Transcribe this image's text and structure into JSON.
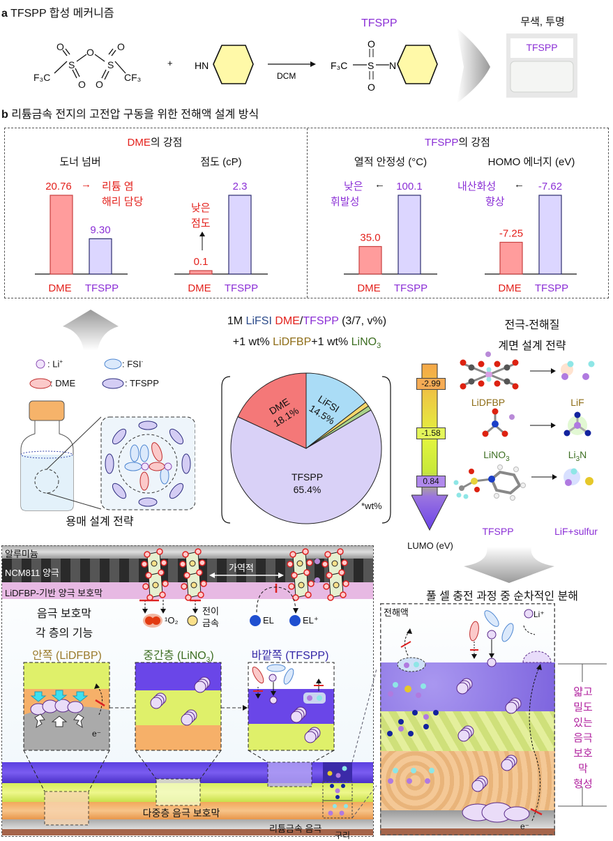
{
  "part_a": {
    "label": "a",
    "title": "TFSPP 합성 메커니즘",
    "plus": "+",
    "solvent": "DCM",
    "product_name": "TFSPP",
    "vial_caption": "무색, 투명",
    "vial_label": "TFSPP",
    "atoms": {
      "o": "O",
      "s": "S",
      "f3c": "F₃C",
      "cf3": "CF₃",
      "hn": "HN",
      "n": "N"
    }
  },
  "part_b": {
    "label": "b",
    "title": "리튬금속 전지의 고전압 구동을 위한 전해액 설계 방식",
    "dme_panel": {
      "name": "DME",
      "suffix": "의 강점"
    },
    "tfspp_panel": {
      "name": "TFSPP",
      "suffix": "의 강점"
    },
    "annotations": {
      "donor": [
        "리튬 염",
        "해리 담당"
      ],
      "viscosity": [
        "낮은",
        "점도"
      ],
      "thermal": [
        "낮은",
        "휘발성"
      ],
      "homo": [
        "내산화성",
        "향상"
      ]
    },
    "formula": {
      "line1": [
        "1M ",
        "LiFSI",
        " ",
        "DME",
        "/",
        "TFSPP",
        " (3/7, v%)"
      ],
      "line2": [
        "+1 wt% ",
        "LiDFBP",
        "+1 wt% ",
        "LiNO",
        "3"
      ]
    },
    "legend": {
      "li": ": Li",
      "li_sup": "+",
      "fsi": ": FSI",
      "fsi_sup": "-",
      "dme": ": DME",
      "tfspp": ": TFSPP"
    },
    "solvent_strategy": "용매 설계 전략",
    "interface": {
      "title": [
        "전극-전해질",
        "계면 설계 전략"
      ],
      "lumo_values": [
        "-2.99",
        "-1.58",
        "0.84"
      ],
      "lumo_label": "LUMO (eV)",
      "additives": [
        {
          "name": "LiDFBP",
          "product": "LiF"
        },
        {
          "name": "LiNO",
          "name_sub": "3",
          "product": "Li",
          "product_sub": "3",
          "product_tail": "N"
        },
        {
          "name": "TFSPP",
          "product": "LiF+sulfur"
        }
      ]
    },
    "anode_panel": {
      "layers": {
        "al": "알루미늄",
        "ncm": "NCM811 양극",
        "cei": "LiDFBP-기반 양극 보호막"
      },
      "reversible": "가역적",
      "singlet_o2": "¹O₂",
      "tm": [
        "전이",
        "금속"
      ],
      "el": "EL",
      "el_plus": "EL⁺",
      "function_title": [
        "음극 보호막",
        "각 층의 기능"
      ],
      "inner": "안쪽 (LiDFBP)",
      "middle": [
        "중간층 (LiNO",
        "3",
        ")"
      ],
      "outer": "바깥쪽 (TFSPP)",
      "electron": "e⁻",
      "multilayer": "다중층 음극 보호막",
      "li_anode": "리튬금속 음극",
      "copper": "구리"
    },
    "decomposition": {
      "title": "풀 셀 충전 과정 중 순차적인 분해",
      "electrolyte": "전해액",
      "li_plus": "Li⁺",
      "electron": "e⁻",
      "result": [
        "얇고",
        "밀도",
        "있는",
        "음극",
        "보호막",
        "형성"
      ]
    }
  },
  "colors": {
    "dme": "#e3201b",
    "tfspp": "#8b2fd6",
    "lifsi": "#2b4a8a",
    "lidfbp": "#8e6d17",
    "lino3": "#3d6e22",
    "dme_bar": "#ff9c9c",
    "tfspp_bar": "#dcd6ff",
    "pie_dme": "#f47878",
    "pie_lifsi": "#aadcf6",
    "pie_lidfbp": "#f5d66a",
    "pie_lino3": "#a9d28a",
    "pie_tfspp": "#d9d1f7"
  },
  "chart_data": [
    {
      "type": "bar",
      "title": "도너 넘버",
      "categories": [
        "DME",
        "TFSPP"
      ],
      "values": [
        20.76,
        9.3
      ],
      "labels": [
        "20.76",
        "9.30"
      ],
      "ylim": [
        0,
        20.76
      ]
    },
    {
      "type": "bar",
      "title": "점도 (cP)",
      "categories": [
        "DME",
        "TFSPP"
      ],
      "values": [
        0.1,
        2.3
      ],
      "labels": [
        "0.1",
        "2.3"
      ],
      "ylim": [
        0,
        2.3
      ]
    },
    {
      "type": "bar",
      "title": "열적 안정성 (°C)",
      "categories": [
        "DME",
        "TFSPP"
      ],
      "values": [
        35.0,
        100.1
      ],
      "labels": [
        "35.0",
        "100.1"
      ],
      "ylim": [
        0,
        100.1
      ]
    },
    {
      "type": "bar",
      "title": "HOMO 에너지 (eV)",
      "categories": [
        "DME",
        "TFSPP"
      ],
      "values": [
        -7.25,
        -7.62
      ],
      "labels": [
        "-7.25",
        "-7.62"
      ],
      "ylim": [
        -7.0,
        -7.62
      ]
    },
    {
      "type": "pie",
      "categories": [
        "LiFSI",
        "LiDFBP",
        "LiNO3",
        "TFSPP",
        "DME"
      ],
      "values": [
        14.5,
        1,
        1,
        65.4,
        18.1
      ],
      "labels": [
        "LiFSI\n14.5%",
        "",
        "",
        "TFSPP\n65.4%",
        "DME\n18.1%"
      ],
      "note": "*wt%"
    }
  ]
}
